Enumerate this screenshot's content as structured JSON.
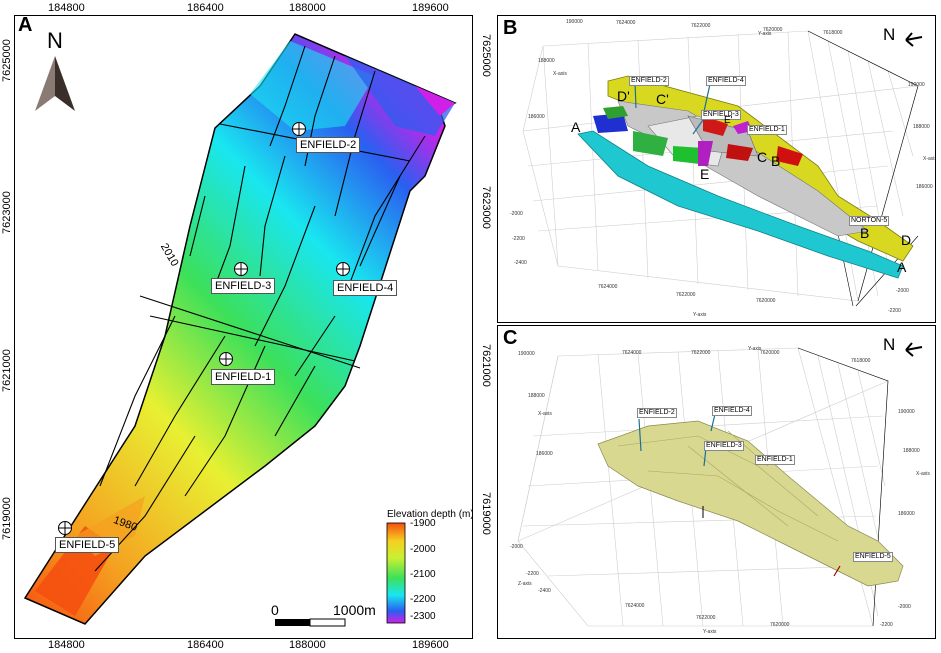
{
  "panels": {
    "a": {
      "letter": "A",
      "x_ticks": [
        "184800",
        "186400",
        "188000",
        "189600"
      ],
      "y_ticks_left": [
        "7625000",
        "7623000",
        "7621000",
        "7619000"
      ],
      "y_ticks_right": [
        "7625000",
        "7623000",
        "7621000",
        "7619000"
      ],
      "north": "N",
      "wells": [
        "ENFIELD-2",
        "ENFIELD-3",
        "ENFIELD-4",
        "ENFIELD-1",
        "ENFIELD-5"
      ],
      "contours": [
        "2010",
        "1980"
      ],
      "legend": {
        "title": "Elevation depth (m)",
        "ticks": [
          "-1900",
          "-2000",
          "-2100",
          "-2200",
          "-2300"
        ]
      },
      "scale": {
        "zero": "0",
        "length": "1000m"
      }
    },
    "b": {
      "letter": "B",
      "north": "N",
      "wells": [
        "ENFIELD-2",
        "ENFIELD-4",
        "ENFIELD-3",
        "ENFIELD-1",
        "NORTON-5"
      ],
      "sections": [
        "A",
        "A",
        "B",
        "B",
        "C",
        "C'",
        "D",
        "D'",
        "E",
        "E'"
      ],
      "axes": {
        "x": "X-axis",
        "y": "Y-axis",
        "z": "Z-axis"
      },
      "y_ticks_top": [
        "7624000",
        "7622000",
        "7620000",
        "7618000"
      ],
      "x_ticks_left": [
        "190000",
        "188000",
        "186000"
      ],
      "x_ticks_right": [
        "190000",
        "188000",
        "186000"
      ],
      "z_ticks": [
        "-2000",
        "-2200",
        "-2400"
      ],
      "y_ticks_bottom": [
        "7624000",
        "7622000",
        "7620000"
      ],
      "z_ticks_right": [
        "-2000",
        "-2200"
      ]
    },
    "c": {
      "letter": "C",
      "north": "N",
      "wells": [
        "ENFIELD-2",
        "ENFIELD-4",
        "ENFIELD-3",
        "ENFIELD-1",
        "ENFIELD-5"
      ],
      "axes": {
        "x": "X-axis",
        "y": "Y-axis",
        "z": "Z-axis"
      },
      "y_ticks_top": [
        "7624000",
        "7622000",
        "7620000",
        "7618000"
      ],
      "x_ticks_left": [
        "190000",
        "188000",
        "186000"
      ],
      "x_ticks_right": [
        "190000",
        "188000",
        "186000"
      ],
      "z_ticks": [
        "-2000",
        "-2200",
        "-2400"
      ],
      "y_ticks_bottom": [
        "7624000",
        "7622000",
        "7620000"
      ],
      "z_ticks_right": [
        "-2000",
        "-2200"
      ]
    }
  },
  "colors": {
    "deep": "#d020e8",
    "blue": "#2a5ff0",
    "cyan": "#19e6f0",
    "green": "#3ce05a",
    "yellow": "#e8f032",
    "orange": "#f5a020",
    "red": "#f55010",
    "surface_b": "#1fc8d0",
    "fault_yellow": "#d8d820",
    "surface_c": "#d8d890"
  }
}
